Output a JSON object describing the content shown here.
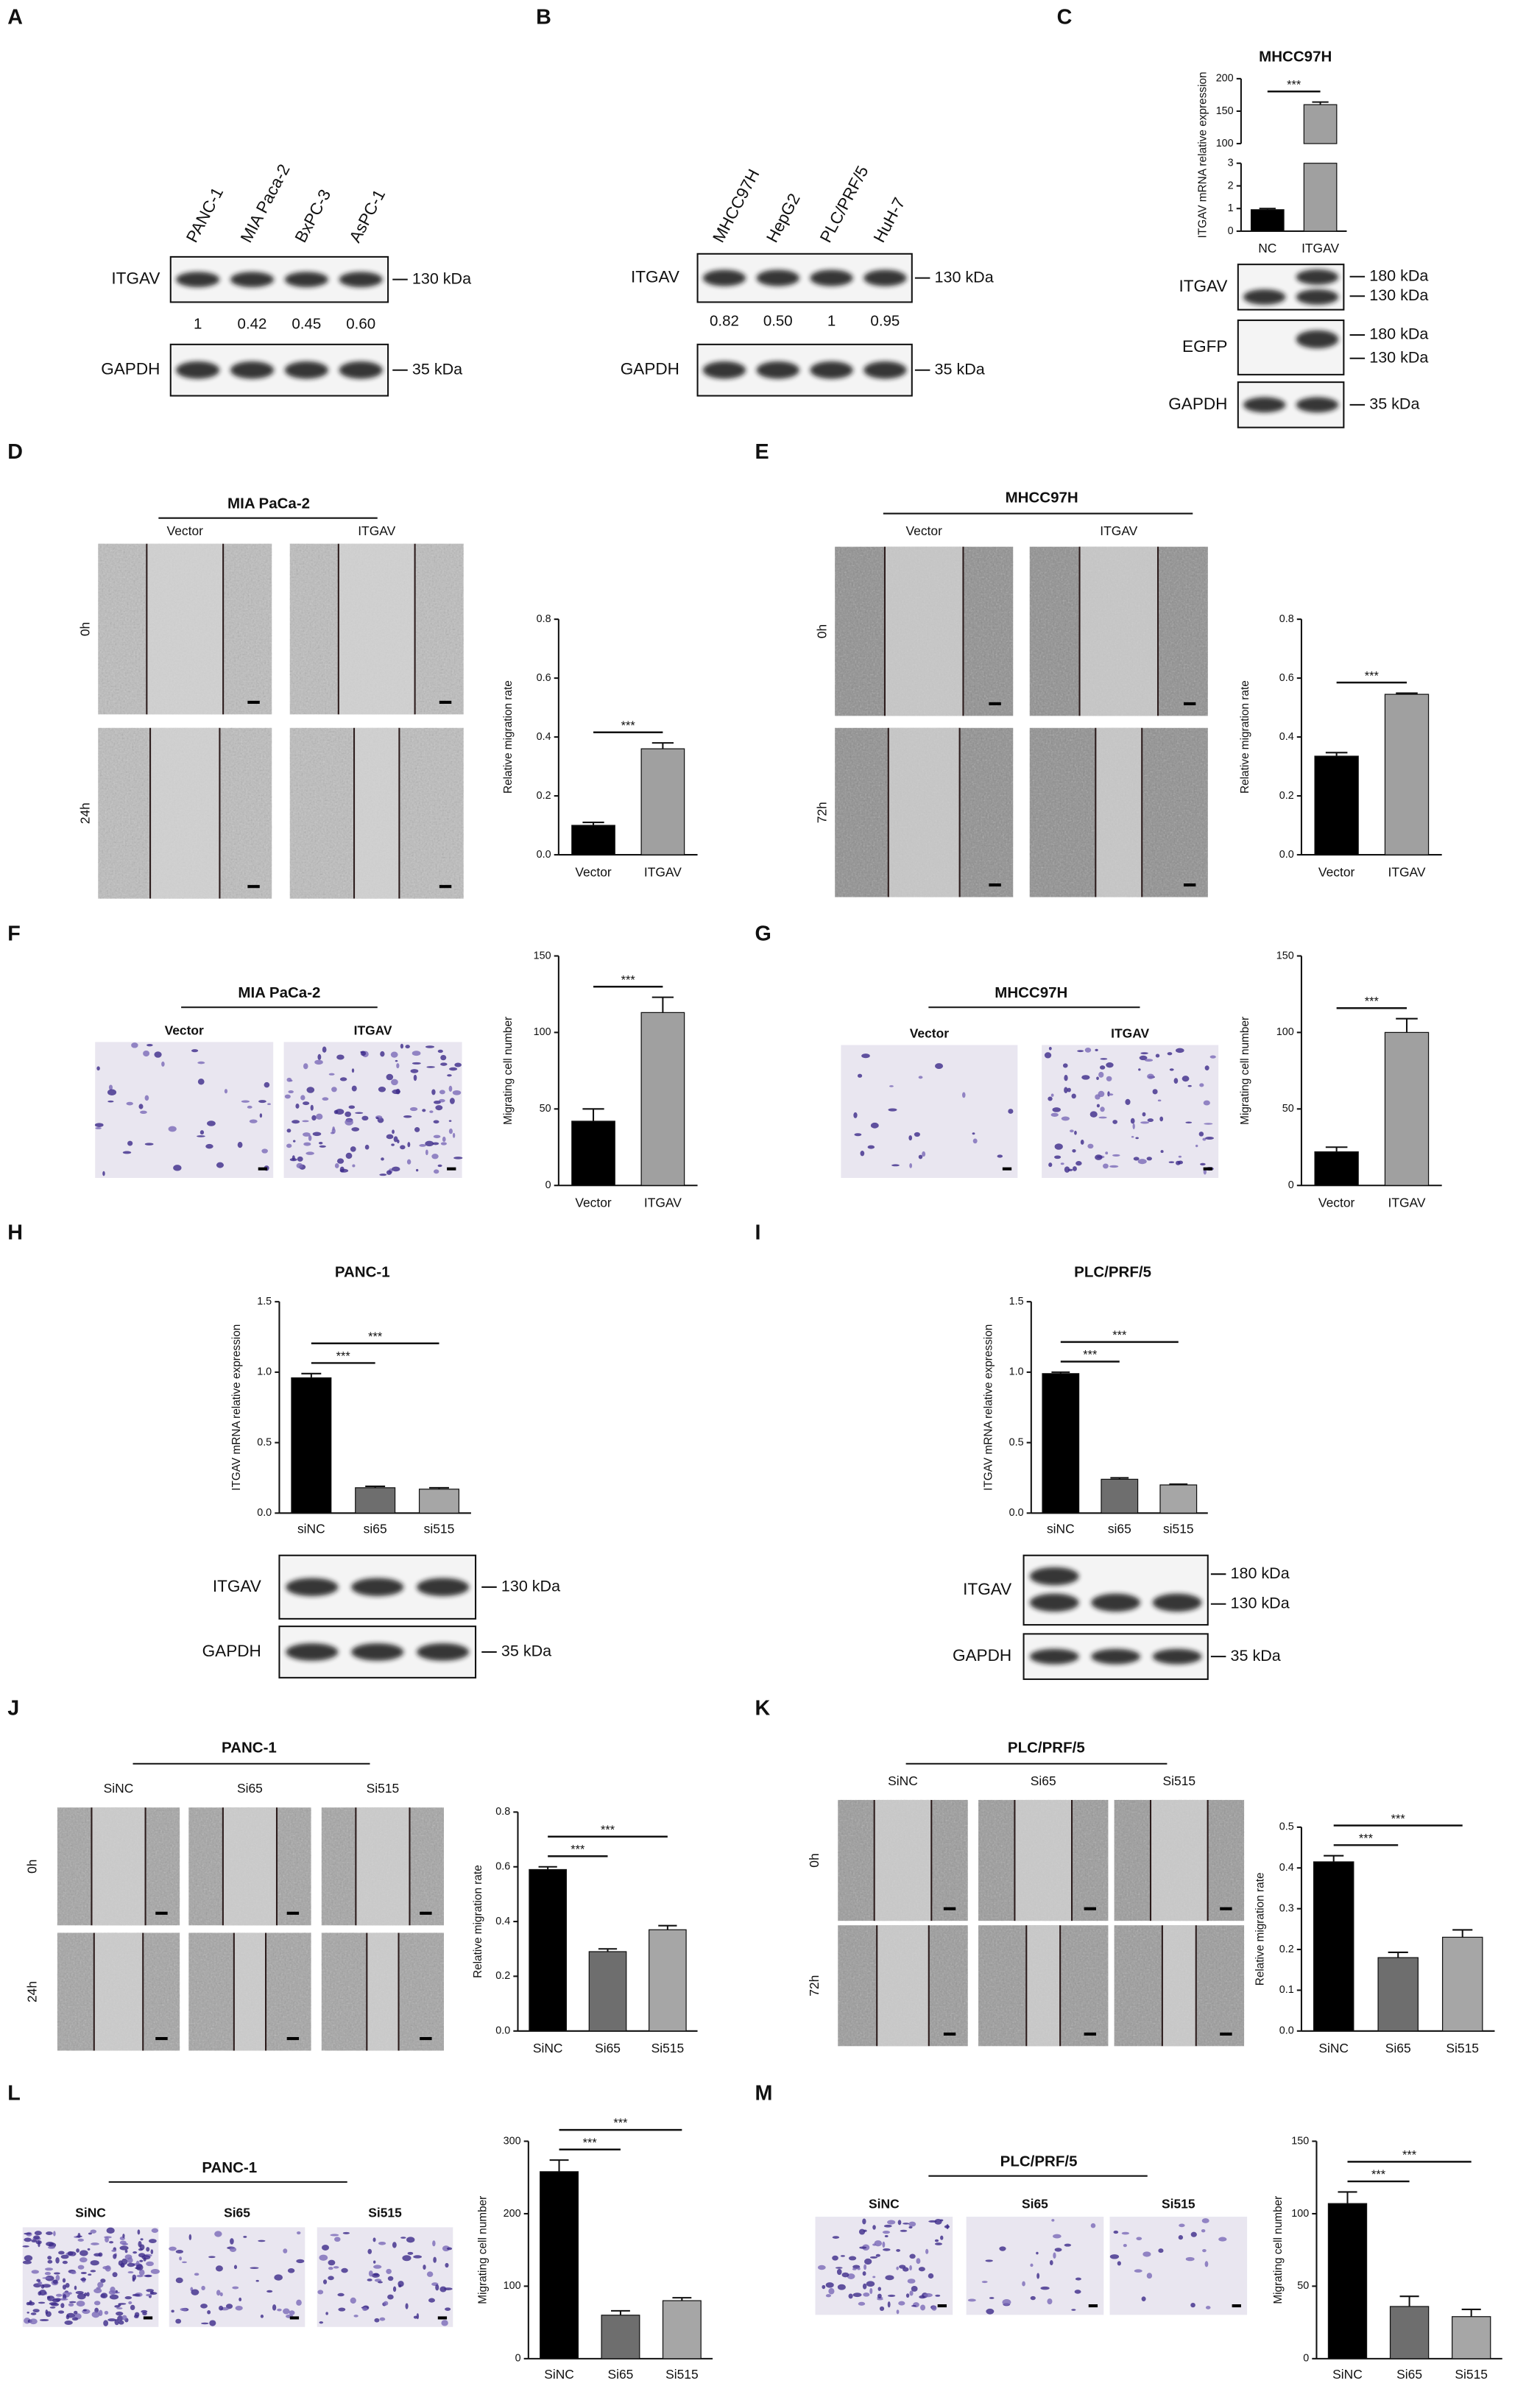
{
  "panel_labels": [
    "A",
    "B",
    "C",
    "D",
    "E",
    "F",
    "G",
    "H",
    "I",
    "J",
    "K",
    "L",
    "M"
  ],
  "blots": [
    {
      "lanes": [
        "PANC-1",
        "MIA Paca-2",
        "BxPC-3",
        "AsPC-1"
      ],
      "rows": [
        {
          "name": "ITGAV",
          "markers": [
            "130 kDa"
          ]
        },
        {
          "name": "GAPDH",
          "markers": [
            "35 kDa"
          ]
        }
      ],
      "quantification": [
        "1",
        "0.42",
        "0.45",
        "0.60"
      ]
    },
    {
      "lanes": [
        "MHCC97H",
        "HepG2",
        "PLC/PRF/5",
        "HuH-7"
      ],
      "rows": [
        {
          "name": "ITGAV",
          "markers": [
            "130 kDa"
          ]
        },
        {
          "name": "GAPDH",
          "markers": [
            "35 kDa"
          ]
        }
      ],
      "quantification": [
        "0.82",
        "0.50",
        "1",
        "0.95"
      ]
    },
    {
      "rows": [
        {
          "name": "ITGAV",
          "markers": [
            "180 kDa",
            "130 kDa"
          ]
        },
        {
          "name": "EGFP",
          "markers": [
            "180 kDa",
            "130 kDa"
          ]
        },
        {
          "name": "GAPDH",
          "markers": [
            "35 kDa"
          ]
        }
      ]
    },
    {
      "rows": [
        {
          "name": "ITGAV",
          "markers": [
            "130 kDa"
          ]
        },
        {
          "name": "GAPDH",
          "markers": [
            "35 kDa"
          ]
        }
      ]
    },
    {
      "rows": [
        {
          "name": "ITGAV",
          "markers": [
            "180 kDa",
            "130 kDa"
          ]
        },
        {
          "name": "GAPDH",
          "markers": [
            "35 kDa"
          ]
        }
      ]
    }
  ],
  "assays": [
    {
      "title": "MIA PaCa-2",
      "columns": [
        "Vector",
        "ITGAV"
      ],
      "rows": [
        "0h",
        "24h"
      ]
    },
    {
      "title": "MHCC97H",
      "columns": [
        "Vector",
        "ITGAV"
      ],
      "rows": [
        "0h",
        "72h"
      ]
    },
    {
      "title": "MIA PaCa-2",
      "columns": [
        "Vector",
        "ITGAV"
      ]
    },
    {
      "title": "MHCC97H",
      "columns": [
        "Vector",
        "ITGAV"
      ]
    },
    {
      "title": "PANC-1",
      "columns": [
        "SiNC",
        "Si65",
        "Si515"
      ],
      "rows": [
        "0h",
        "24h"
      ]
    },
    {
      "title": "PLC/PRF/5",
      "columns": [
        "SiNC",
        "Si65",
        "Si515"
      ],
      "rows": [
        "0h",
        "72h"
      ]
    },
    {
      "title": "PANC-1",
      "columns": [
        "SiNC",
        "Si65",
        "Si515"
      ]
    },
    {
      "title": "PLC/PRF/5",
      "columns": [
        "SiNC",
        "Si65",
        "Si515"
      ]
    }
  ],
  "chart_data": [
    {
      "type": "bar",
      "title": "MHCC97H",
      "ylabel": "ITGAV  mRNA relative expression",
      "categories": [
        "NC",
        "ITGAV"
      ],
      "values": [
        0.95,
        160
      ],
      "errors": [
        0.05,
        4
      ],
      "colors": [
        "#000000",
        "#a0a0a0"
      ],
      "segments": [
        {
          "ylim": [
            0,
            3
          ],
          "yticks": [
            0,
            1,
            2,
            3
          ]
        },
        {
          "ylim": [
            100,
            200
          ],
          "yticks": [
            100,
            150,
            200
          ]
        }
      ],
      "significance": [
        "***"
      ]
    },
    {
      "type": "bar",
      "ylabel": "Relative migration rate",
      "categories": [
        "Vector",
        "ITGAV"
      ],
      "values": [
        0.1,
        0.36
      ],
      "errors": [
        0.01,
        0.02
      ],
      "colors": [
        "#000000",
        "#a0a0a0"
      ],
      "ylim": [
        0,
        0.8
      ],
      "yticks": [
        {
          "value": 0,
          "label": "0.0"
        },
        0.2,
        0.4,
        0.6,
        0.8
      ],
      "significance": [
        "***"
      ]
    },
    {
      "type": "bar",
      "ylabel": "Relative migration rate",
      "categories": [
        "Vector",
        "ITGAV"
      ],
      "values": [
        0.335,
        0.545
      ],
      "errors": [
        0.012,
        0.004
      ],
      "colors": [
        "#000000",
        "#a0a0a0"
      ],
      "ylim": [
        0,
        0.8
      ],
      "yticks": [
        {
          "value": 0,
          "label": "0.0"
        },
        0.2,
        0.4,
        0.6,
        0.8
      ],
      "significance": [
        "***"
      ]
    },
    {
      "type": "bar",
      "ylabel": "Migrating cell number",
      "categories": [
        "Vector",
        "ITGAV"
      ],
      "values": [
        42,
        113
      ],
      "errors": [
        8,
        10
      ],
      "colors": [
        "#000000",
        "#a0a0a0"
      ],
      "ylim": [
        0,
        150
      ],
      "yticks": [
        0,
        50,
        100,
        150
      ],
      "significance": [
        "***"
      ]
    },
    {
      "type": "bar",
      "ylabel": "Migrating cell number",
      "categories": [
        "Vector",
        "ITGAV"
      ],
      "values": [
        22,
        100
      ],
      "errors": [
        3,
        9
      ],
      "colors": [
        "#000000",
        "#a0a0a0"
      ],
      "ylim": [
        0,
        150
      ],
      "yticks": [
        0,
        50,
        100,
        150
      ],
      "significance": [
        "***"
      ]
    },
    {
      "type": "bar",
      "title": "PANC-1",
      "ylabel": "ITGAV  mRNA relative expression",
      "categories": [
        "siNC",
        "si65",
        "si515"
      ],
      "values": [
        0.96,
        0.18,
        0.17
      ],
      "errors": [
        0.03,
        0.01,
        0.01
      ],
      "colors": [
        "#000000",
        "#6e6e6e",
        "#a6a6a6"
      ],
      "ylim": [
        0,
        1.5
      ],
      "yticks": [
        {
          "value": 0,
          "label": "0.0"
        },
        0.5,
        {
          "value": 1,
          "label": "1.0"
        },
        1.5
      ],
      "significance": [
        "***",
        "***"
      ]
    },
    {
      "type": "bar",
      "title": "PLC/PRF/5",
      "ylabel": "ITGAV  mRNA relative expression",
      "categories": [
        "siNC",
        "si65",
        "si515"
      ],
      "values": [
        0.99,
        0.24,
        0.2
      ],
      "errors": [
        0.01,
        0.01,
        0.005
      ],
      "colors": [
        "#000000",
        "#6e6e6e",
        "#a6a6a6"
      ],
      "ylim": [
        0,
        1.5
      ],
      "yticks": [
        {
          "value": 0,
          "label": "0.0"
        },
        0.5,
        {
          "value": 1,
          "label": "1.0"
        },
        1.5
      ],
      "significance": [
        "***",
        "***"
      ]
    },
    {
      "type": "bar",
      "ylabel": "Relative migration rate",
      "categories": [
        "SiNC",
        "Si65",
        "Si515"
      ],
      "values": [
        0.59,
        0.29,
        0.37
      ],
      "errors": [
        0.01,
        0.01,
        0.015
      ],
      "colors": [
        "#000000",
        "#6e6e6e",
        "#a6a6a6"
      ],
      "ylim": [
        0,
        0.8
      ],
      "yticks": [
        {
          "value": 0,
          "label": "0.0"
        },
        0.2,
        0.4,
        0.6,
        0.8
      ],
      "significance": [
        "***",
        "***"
      ]
    },
    {
      "type": "bar",
      "ylabel": "Relative migration rate",
      "categories": [
        "SiNC",
        "Si65",
        "Si515"
      ],
      "values": [
        0.415,
        0.18,
        0.23
      ],
      "errors": [
        0.015,
        0.013,
        0.018
      ],
      "colors": [
        "#000000",
        "#6e6e6e",
        "#a6a6a6"
      ],
      "ylim": [
        0,
        0.5
      ],
      "yticks": [
        {
          "value": 0,
          "label": "0.0"
        },
        0.1,
        0.2,
        0.3,
        0.4,
        0.5
      ],
      "significance": [
        "***",
        "***"
      ]
    },
    {
      "type": "bar",
      "ylabel": "Migrating cell number",
      "categories": [
        "SiNC",
        "Si65",
        "Si515"
      ],
      "values": [
        258,
        60,
        80
      ],
      "errors": [
        16,
        6,
        4
      ],
      "colors": [
        "#000000",
        "#6e6e6e",
        "#a6a6a6"
      ],
      "ylim": [
        0,
        300
      ],
      "yticks": [
        0,
        100,
        200,
        300
      ],
      "significance": [
        "***",
        "***"
      ]
    },
    {
      "type": "bar",
      "ylabel": "Migrating cell number",
      "categories": [
        "SiNC",
        "Si65",
        "Si515"
      ],
      "values": [
        107,
        36,
        29
      ],
      "errors": [
        8,
        7,
        5
      ],
      "colors": [
        "#000000",
        "#6e6e6e",
        "#a6a6a6"
      ],
      "ylim": [
        0,
        150
      ],
      "yticks": [
        0,
        50,
        100,
        150
      ],
      "significance": [
        "***",
        "***"
      ]
    }
  ]
}
